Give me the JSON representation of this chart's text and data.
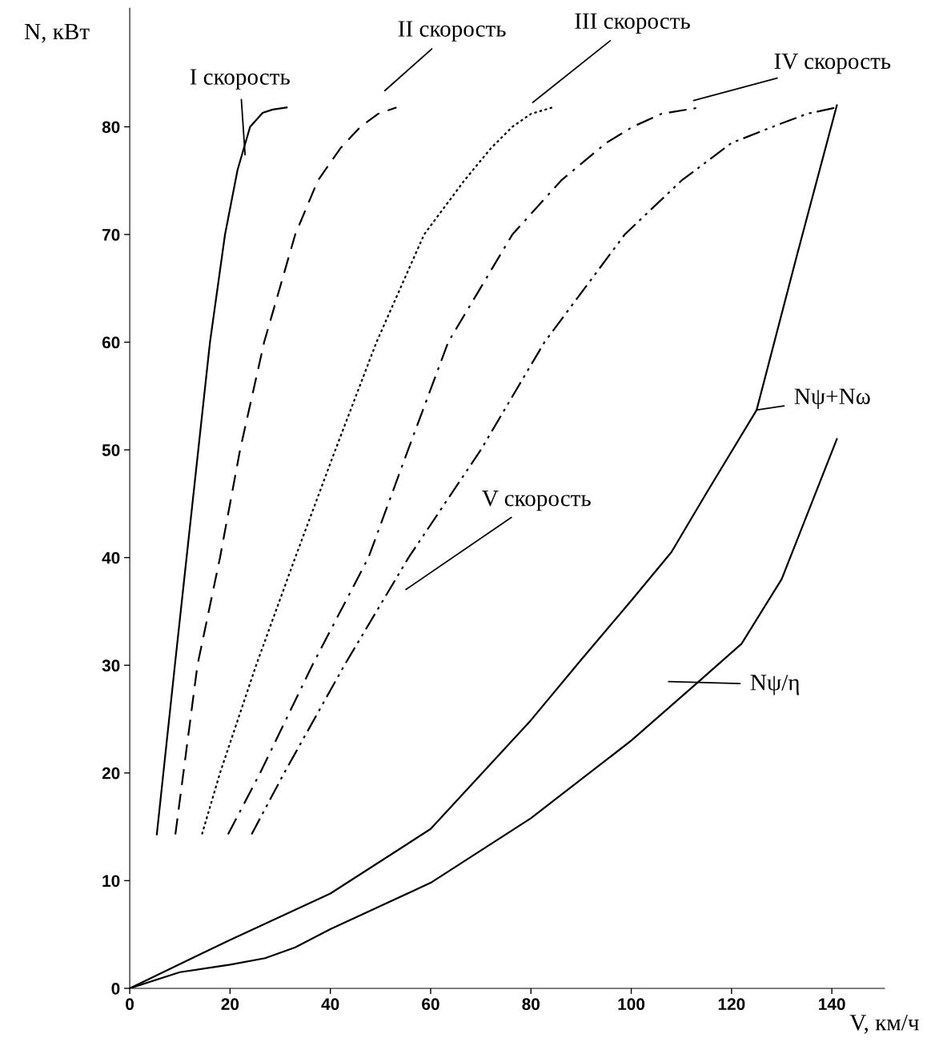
{
  "chart_data": {
    "type": "line",
    "xlabel": "V, км/ч",
    "ylabel": "N, кВт",
    "xlim": [
      0,
      150.5
    ],
    "ylim": [
      0,
      91
    ],
    "xticks": [
      0,
      20,
      40,
      60,
      80,
      100,
      120,
      140
    ],
    "yticks": [
      0,
      10,
      20,
      30,
      40,
      50,
      60,
      70,
      80
    ],
    "grid": false,
    "legend": false,
    "marker": "none",
    "series": [
      {
        "color": "#000000",
        "line_style": "solid",
        "x": [
          5.4,
          9,
          12.5,
          16,
          19,
          21.5,
          24,
          26.5,
          28.5,
          31.3
        ],
        "values": [
          14.3,
          30,
          45,
          60,
          70,
          76,
          80,
          81.3,
          81.6,
          81.8
        ]
      },
      {
        "color": "#000000",
        "line_style": "dashed",
        "x": [
          9.1,
          13.5,
          18,
          22,
          26.8,
          33,
          37.5,
          42,
          46,
          49.5,
          53.2
        ],
        "values": [
          14.3,
          30,
          40,
          50,
          60,
          70,
          75,
          78,
          80,
          81.2,
          81.8
        ]
      },
      {
        "color": "#000000",
        "line_style": "dotted",
        "x": [
          14.4,
          18,
          25.2,
          33,
          41,
          49.2,
          58.7,
          66.7,
          72,
          76.3,
          80,
          84.3
        ],
        "values": [
          14.3,
          20,
          30,
          40,
          50,
          60,
          70,
          75,
          78,
          80,
          81.2,
          81.8
        ]
      },
      {
        "color": "#000000",
        "line_style": "dashdot",
        "x": [
          19.6,
          26,
          36.4,
          47.6,
          55.5,
          63.5,
          76.3,
          86,
          95,
          100.3,
          106,
          113.7
        ],
        "values": [
          14.3,
          20,
          30,
          40,
          50,
          60,
          70,
          75,
          78.5,
          80,
          81.2,
          81.8
        ]
      },
      {
        "color": "#000000",
        "line_style": "dashdotdot",
        "x": [
          24.3,
          30.8,
          42.8,
          55.6,
          70,
          82.7,
          98.7,
          110,
          120,
          128.2,
          135,
          141
        ],
        "values": [
          14.3,
          20,
          30,
          40,
          50,
          60,
          70,
          75,
          78.5,
          80,
          81.2,
          81.8
        ]
      },
      {
        "color": "#000000",
        "line_style": "solid",
        "x": [
          0,
          20,
          40,
          60,
          80,
          90,
          100,
          108,
          115,
          125,
          133,
          141
        ],
        "values": [
          0,
          4.5,
          8.8,
          14.8,
          24.9,
          30.5,
          36,
          40.5,
          46,
          53.7,
          68,
          82
        ]
      },
      {
        "color": "#000000",
        "line_style": "solid",
        "x": [
          0,
          10,
          20,
          27,
          33,
          40,
          60,
          80,
          100,
          113,
          122,
          130,
          141
        ],
        "values": [
          0,
          1.5,
          2.2,
          2.8,
          3.8,
          5.5,
          9.8,
          15.8,
          23,
          28.3,
          32,
          38,
          51
        ]
      }
    ],
    "annotations": [
      {
        "text": "I скорость",
        "x": 23,
        "y": 77.4
      },
      "II скорость",
      "III скорость",
      "IV скорость",
      "V скорость",
      "Nψ+Nω",
      "Nψ/η"
    ]
  }
}
